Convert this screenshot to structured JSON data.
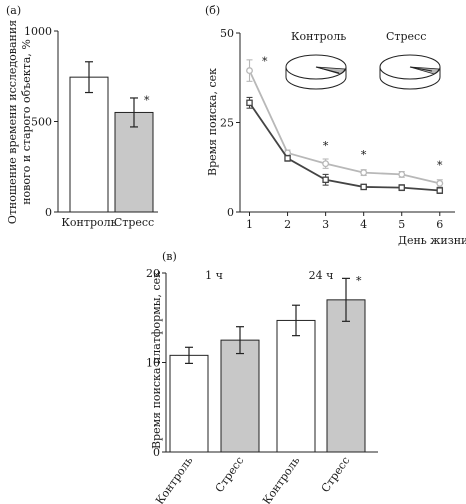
{
  "chart_data": [
    {
      "panel_label": "(а)",
      "type": "bar",
      "ylabel": "Отношение времени исследования нового и старого объекта, %",
      "ylim": [
        0,
        1000
      ],
      "yticks": [
        0,
        500,
        1000
      ],
      "categories": [
        "Контроль",
        "Стресс"
      ],
      "values": [
        745,
        550
      ],
      "errors": [
        85,
        80
      ],
      "colors": [
        "#ffffff",
        "#c8c8c8"
      ],
      "significance": [
        "",
        "*"
      ]
    },
    {
      "panel_label": "(б)",
      "type": "line",
      "ylabel": "Время поиска, сек",
      "xlabel": "День жизни",
      "ylim": [
        0,
        50
      ],
      "yticks": [
        0,
        25,
        50
      ],
      "x": [
        1,
        2,
        3,
        4,
        5,
        6
      ],
      "series": [
        {
          "name": "Контроль",
          "values": [
            30.5,
            15,
            9,
            7,
            6.8,
            6
          ],
          "errors": [
            1.5,
            0.8,
            1.5,
            0.7,
            0.8,
            0.8
          ],
          "color": "#444444",
          "marker": "square"
        },
        {
          "name": "Стресс",
          "values": [
            39.5,
            16.5,
            13.5,
            11,
            10.5,
            8
          ],
          "errors": [
            3,
            0.8,
            1.3,
            0.8,
            0.8,
            1
          ],
          "color": "#b8b8b8",
          "marker": "circle"
        }
      ],
      "significance": [
        {
          "x": 1.4,
          "y": 41,
          "text": "*"
        },
        {
          "x": 3,
          "y": 17.5,
          "text": "*"
        },
        {
          "x": 4,
          "y": 15,
          "text": "*"
        },
        {
          "x": 6,
          "y": 12,
          "text": "*"
        }
      ],
      "insets": [
        {
          "label": "Контроль",
          "quadrant_fill": "#b8b8b8"
        },
        {
          "label": "Стресс",
          "quadrant_fill": "#b8b8b8"
        }
      ]
    },
    {
      "panel_label": "(в)",
      "type": "bar",
      "ylabel": "Время поиска платформы, сек",
      "ylim": [
        0,
        20
      ],
      "yticks": [
        0,
        10,
        20
      ],
      "groups": [
        "1 ч",
        "24 ч"
      ],
      "categories": [
        "Контроль",
        "Стресс",
        "Контроль",
        "Стресс"
      ],
      "values": [
        10.8,
        12.5,
        14.7,
        17
      ],
      "errors": [
        0.9,
        1.5,
        1.7,
        2.4
      ],
      "colors": [
        "#ffffff",
        "#c8c8c8",
        "#ffffff",
        "#c8c8c8"
      ],
      "significance": [
        "",
        "",
        "",
        "*"
      ]
    }
  ]
}
